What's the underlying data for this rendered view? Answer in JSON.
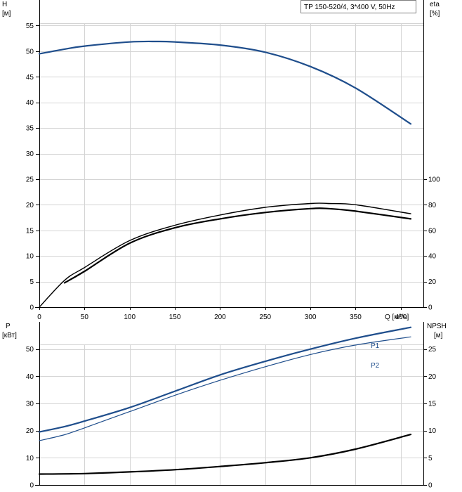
{
  "chart_data": [
    {
      "type": "line",
      "legend": "TP 150-520/4, 3*400 V, 50Hz",
      "xlabel": "Q [м³/ч]",
      "xlim": [
        0,
        425
      ],
      "x_ticks": [
        "0",
        "50",
        "100",
        "150",
        "200",
        "250",
        "300",
        "350",
        "400"
      ],
      "y_left": {
        "label_line1": "H",
        "label_line2": "[м]",
        "lim": [
          0,
          60
        ],
        "ticks": [
          "0",
          "5",
          "10",
          "15",
          "20",
          "25",
          "30",
          "35",
          "40",
          "45",
          "50",
          "55"
        ]
      },
      "y_right": {
        "label_line1": "eta",
        "label_line2": "[%]",
        "lim": [
          0,
          240
        ],
        "ticks": [
          "0",
          "20",
          "40",
          "60",
          "80",
          "100"
        ]
      },
      "grid": true,
      "series": [
        {
          "axis": "left",
          "color": "#1f4e8c",
          "width": 2.2,
          "x": [
            0,
            28,
            50,
            100,
            130,
            150,
            200,
            250,
            300,
            350,
            411
          ],
          "y": [
            49.5,
            50.4,
            51.0,
            51.8,
            51.9,
            51.8,
            51.2,
            49.8,
            47.0,
            42.8,
            35.8
          ]
        },
        {
          "axis": "left",
          "color": "#1f4e8c",
          "width": 1.2,
          "extrapolated": true,
          "x": [
            0,
            28
          ],
          "y": [
            49.5,
            50.4
          ]
        },
        {
          "axis": "right",
          "color": "#000000",
          "width": 1.4,
          "x": [
            0,
            28,
            50,
            100,
            150,
            200,
            250,
            300,
            320,
            350,
            411
          ],
          "y": [
            0,
            21,
            31,
            52,
            64,
            72,
            78,
            81,
            81,
            80,
            73
          ]
        },
        {
          "axis": "right",
          "color": "#000000",
          "width": 2.2,
          "x": [
            28,
            50,
            100,
            150,
            200,
            250,
            300,
            320,
            350,
            411
          ],
          "y": [
            19,
            28,
            50,
            62,
            69,
            74,
            77,
            77,
            75,
            69
          ]
        }
      ]
    },
    {
      "type": "line",
      "xlim": [
        0,
        425
      ],
      "y_left": {
        "label_line1": "P",
        "label_line2": "[кВт]",
        "lim": [
          0,
          60
        ],
        "ticks": [
          "0",
          "10",
          "20",
          "30",
          "40",
          "50"
        ]
      },
      "y_right": {
        "label_line1": "NPSH",
        "label_line2": "[м]",
        "lim": [
          0,
          30
        ],
        "ticks": [
          "0",
          "5",
          "10",
          "15",
          "20",
          "25"
        ]
      },
      "grid": true,
      "series": [
        {
          "name": "P1",
          "axis": "left",
          "color": "#1f4e8c",
          "width": 2.2,
          "x": [
            0,
            28,
            50,
            100,
            150,
            200,
            250,
            300,
            350,
            411
          ],
          "y": [
            19.5,
            21.5,
            23.5,
            28.5,
            34.5,
            40.5,
            45.5,
            50.0,
            54.0,
            58.0
          ]
        },
        {
          "name": "P2",
          "axis": "left",
          "color": "#1f4e8c",
          "width": 1.2,
          "x": [
            0,
            28,
            50,
            100,
            150,
            200,
            250,
            300,
            350,
            411
          ],
          "y": [
            16.3,
            18.5,
            21.0,
            27.0,
            33.0,
            38.5,
            43.5,
            48.0,
            51.5,
            54.5
          ]
        },
        {
          "axis": "right",
          "color": "#000000",
          "width": 2.2,
          "x": [
            0,
            50,
            100,
            150,
            200,
            250,
            300,
            350,
            411
          ],
          "y": [
            2.0,
            2.1,
            2.4,
            2.8,
            3.4,
            4.1,
            5.0,
            6.6,
            9.3
          ]
        }
      ]
    }
  ]
}
